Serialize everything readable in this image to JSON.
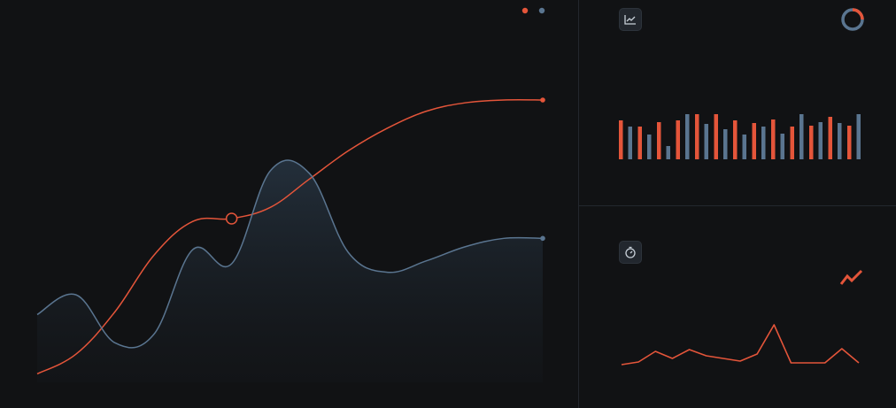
{
  "colors": {
    "background": "#111214",
    "accent_orange": "#e4553a",
    "accent_slate": "#5a7590",
    "divider": "#23272d",
    "icon_bg": "#22272e",
    "icon_fg": "#c9d1d9"
  },
  "legend": {
    "items": [
      {
        "color": "#e4553a"
      },
      {
        "color": "#5a7590"
      }
    ]
  },
  "icons": {
    "top_right": "line-chart-icon",
    "top_right_status": "progress-ring-icon",
    "bottom_right": "stopwatch-icon",
    "bottom_right_status": "trend-zigzag-icon"
  },
  "chart_data": [
    {
      "type": "line",
      "title": "",
      "xlabel": "",
      "ylabel": "",
      "grid": false,
      "legend_placement": "top-right",
      "x": [
        0,
        1,
        2,
        3,
        4,
        5,
        6,
        7,
        8,
        9,
        10,
        11,
        12,
        13
      ],
      "ylim": [
        0,
        100
      ],
      "series": [
        {
          "color": "#e4553a",
          "values": [
            3,
            10,
            25,
            45,
            57,
            58,
            62,
            72,
            82,
            90,
            96,
            99,
            100,
            100
          ],
          "highlight_index": 5
        },
        {
          "color": "#5a7590",
          "values": [
            24,
            31,
            14,
            17,
            47,
            42,
            75,
            74,
            46,
            39,
            43,
            48,
            51,
            51
          ],
          "filled": true
        }
      ]
    },
    {
      "type": "bar",
      "title": "",
      "ylim": [
        0,
        60
      ],
      "series": [
        {
          "color": "#e4553a",
          "values": [
            44,
            37,
            42,
            44,
            51,
            51,
            44,
            41,
            45,
            37,
            38,
            48,
            38
          ]
        },
        {
          "color": "#5a7590",
          "values": [
            37,
            28,
            15,
            51,
            40,
            34,
            28,
            37,
            29,
            51,
            42,
            41,
            51
          ]
        }
      ]
    },
    {
      "type": "line",
      "title": "",
      "ylim": [
        0,
        60
      ],
      "series": [
        {
          "color": "#e4553a",
          "values": [
            2,
            5,
            17,
            9,
            19,
            12,
            9,
            6,
            14,
            47,
            4,
            4,
            4,
            20,
            4
          ]
        }
      ]
    }
  ]
}
